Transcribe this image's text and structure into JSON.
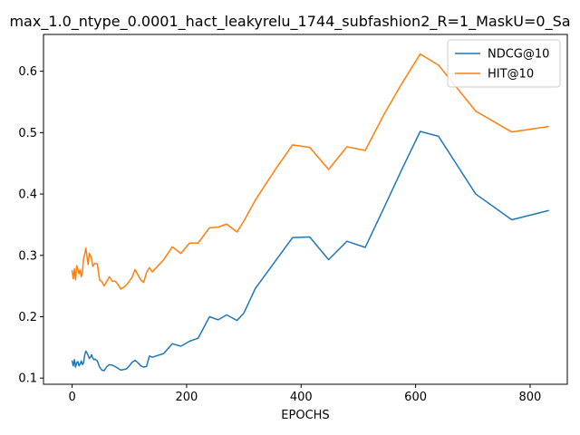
{
  "chart_data": {
    "type": "line",
    "title": "max_1.0_ntype_0.0001_hact_leakyrelu_1744_subfashion2_R=1_MaskU=0_Sa",
    "xlabel": "EPOCHS",
    "ylabel": "",
    "xlim": [
      -50,
      865
    ],
    "ylim": [
      0.09,
      0.66
    ],
    "xticks": [
      0,
      200,
      400,
      600,
      800
    ],
    "yticks": [
      0.1,
      0.2,
      0.3,
      0.4,
      0.5,
      0.6
    ],
    "legend_position": "top-right",
    "grid": false,
    "series": [
      {
        "name": "NDCG@10",
        "color": "#1f77b4",
        "x": [
          0,
          2,
          4,
          6,
          8,
          10,
          12,
          14,
          16,
          18,
          20,
          22,
          24,
          26,
          28,
          30,
          32,
          34,
          36,
          38,
          40,
          44,
          48,
          52,
          56,
          60,
          65,
          70,
          75,
          80,
          85,
          90,
          95,
          100,
          105,
          110,
          115,
          120,
          125,
          130,
          135,
          140,
          160,
          175,
          190,
          205,
          220,
          240,
          255,
          270,
          288,
          300,
          320,
          385,
          415,
          448,
          480,
          512,
          545,
          576,
          608,
          640,
          705,
          768,
          832
        ],
        "y": [
          0.128,
          0.12,
          0.13,
          0.118,
          0.125,
          0.127,
          0.12,
          0.123,
          0.128,
          0.122,
          0.125,
          0.138,
          0.144,
          0.141,
          0.137,
          0.132,
          0.134,
          0.138,
          0.133,
          0.13,
          0.131,
          0.128,
          0.118,
          0.113,
          0.112,
          0.118,
          0.122,
          0.121,
          0.119,
          0.116,
          0.113,
          0.114,
          0.115,
          0.12,
          0.126,
          0.129,
          0.125,
          0.12,
          0.118,
          0.119,
          0.136,
          0.134,
          0.14,
          0.156,
          0.152,
          0.16,
          0.165,
          0.2,
          0.195,
          0.203,
          0.194,
          0.206,
          0.246,
          0.329,
          0.33,
          0.293,
          0.323,
          0.313,
          0.378,
          0.44,
          0.502,
          0.494,
          0.4,
          0.358,
          0.373
        ]
      },
      {
        "name": "HIT@10",
        "color": "#ff7f0e",
        "x": [
          0,
          2,
          4,
          6,
          8,
          10,
          12,
          14,
          16,
          18,
          20,
          22,
          24,
          26,
          28,
          30,
          32,
          34,
          36,
          38,
          40,
          44,
          48,
          52,
          56,
          60,
          65,
          70,
          75,
          80,
          85,
          90,
          95,
          100,
          105,
          110,
          115,
          120,
          125,
          130,
          135,
          140,
          160,
          175,
          190,
          205,
          220,
          240,
          255,
          270,
          288,
          300,
          320,
          355,
          385,
          415,
          448,
          480,
          512,
          545,
          576,
          608,
          640,
          705,
          768,
          832
        ],
        "y": [
          0.275,
          0.262,
          0.278,
          0.26,
          0.283,
          0.278,
          0.27,
          0.276,
          0.265,
          0.272,
          0.295,
          0.302,
          0.312,
          0.298,
          0.285,
          0.303,
          0.3,
          0.295,
          0.282,
          0.285,
          0.287,
          0.286,
          0.26,
          0.257,
          0.25,
          0.257,
          0.265,
          0.258,
          0.258,
          0.253,
          0.245,
          0.248,
          0.252,
          0.258,
          0.265,
          0.277,
          0.268,
          0.26,
          0.256,
          0.272,
          0.28,
          0.273,
          0.293,
          0.314,
          0.303,
          0.32,
          0.32,
          0.345,
          0.346,
          0.351,
          0.338,
          0.356,
          0.39,
          0.44,
          0.48,
          0.476,
          0.44,
          0.477,
          0.471,
          0.53,
          0.58,
          0.628,
          0.61,
          0.535,
          0.501,
          0.51
        ]
      }
    ]
  }
}
